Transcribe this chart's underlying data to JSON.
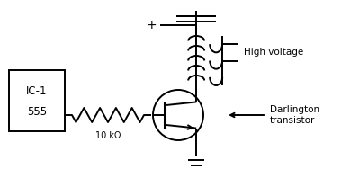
{
  "bg_color": "#ffffff",
  "line_color": "#000000",
  "line_width": 1.4,
  "ic_label1": "IC-1",
  "ic_label2": "555",
  "resistor_label": "10 kΩ",
  "label_high_voltage": "High voltage",
  "label_darlington": "Darlington\ntransistor",
  "plus_label": "+"
}
